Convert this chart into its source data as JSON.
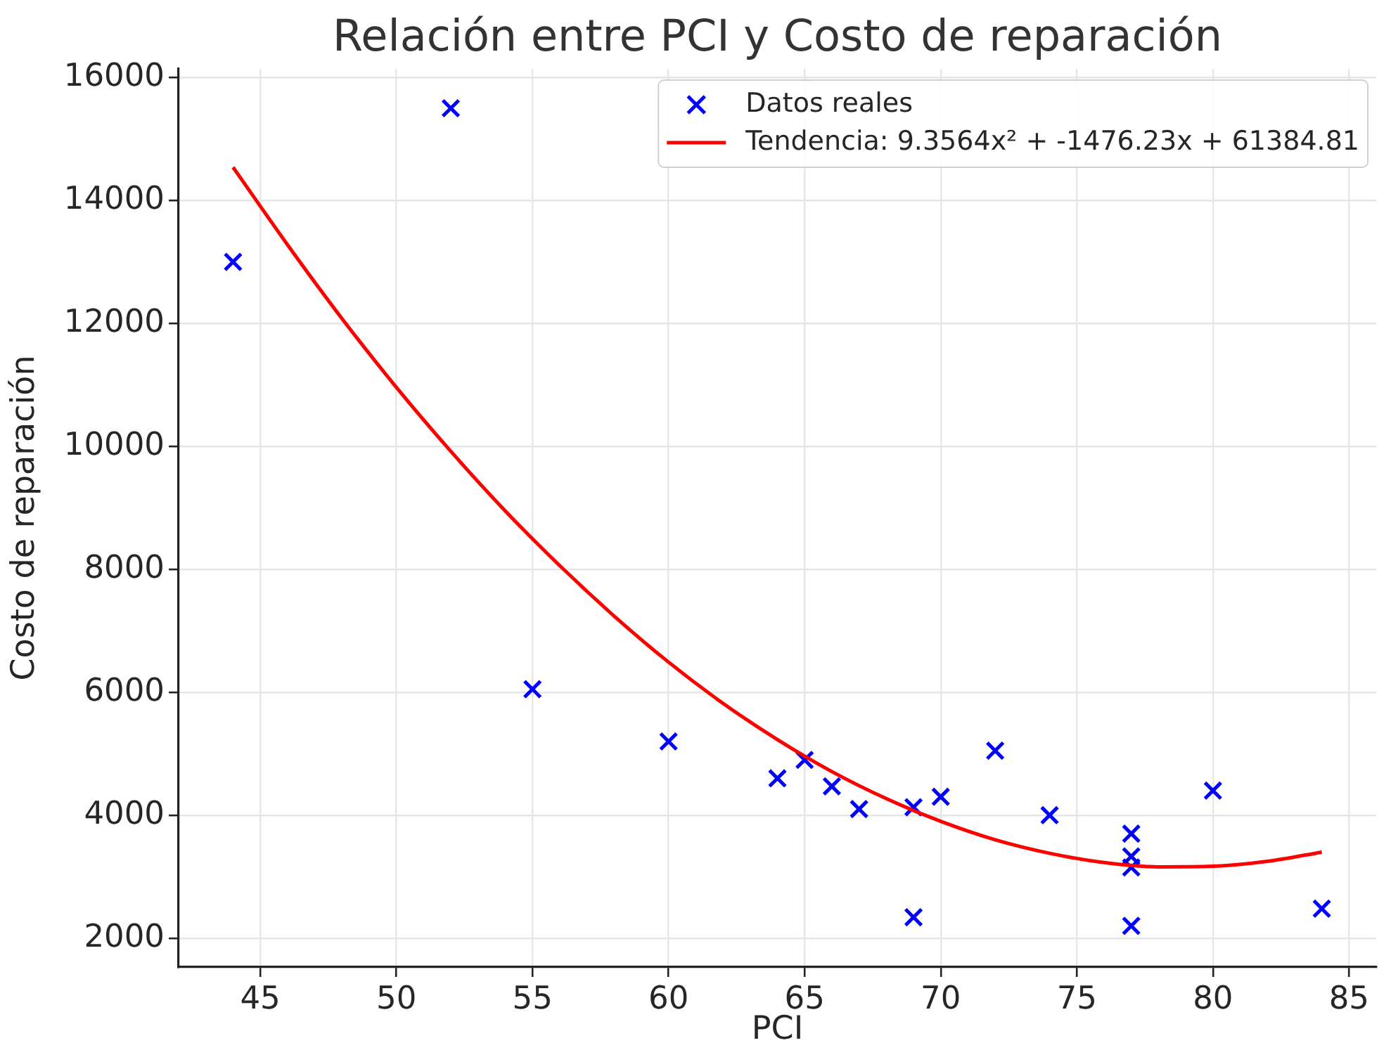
{
  "chart_data": {
    "type": "scatter",
    "title": "Relación entre PCI y Costo de reparación",
    "xlabel": "PCI",
    "ylabel": "Costo de reparación",
    "xlim": [
      42,
      86
    ],
    "ylim": [
      1530,
      16140
    ],
    "xticks": [
      45,
      50,
      55,
      60,
      65,
      70,
      75,
      80,
      85
    ],
    "yticks": [
      2000,
      4000,
      6000,
      8000,
      10000,
      12000,
      14000,
      16000
    ],
    "grid": true,
    "legend": "top right",
    "series": [
      {
        "name": "Datos reales",
        "color": "#0000ff",
        "marker": "cross",
        "x": [
          44,
          52,
          55,
          60,
          64,
          65,
          66,
          67,
          69,
          70,
          72,
          74,
          77,
          77,
          77,
          77,
          80,
          84,
          69
        ],
        "values": [
          13000,
          15500,
          6050,
          5200,
          4600,
          4900,
          4470,
          4100,
          4130,
          4300,
          5050,
          4000,
          3700,
          3330,
          3150,
          2200,
          4400,
          2480,
          2340
        ]
      },
      {
        "name": "Tendencia: 9.3564x² + -1476.23x + 61384.81",
        "type": "line",
        "color": "#ff0000",
        "marker": "none",
        "x": [
          44,
          46,
          48,
          50,
          52,
          54,
          56,
          58,
          60,
          62,
          64,
          66,
          68,
          70,
          72,
          74,
          76,
          78,
          80,
          82,
          84
        ],
        "values": [
          14540,
          13280,
          12080,
          10960,
          9920,
          8950,
          8060,
          7240,
          6490,
          5820,
          5230,
          4710,
          4270,
          3900,
          3600,
          3380,
          3230,
          3160,
          3170,
          3250,
          3400
        ]
      }
    ]
  }
}
